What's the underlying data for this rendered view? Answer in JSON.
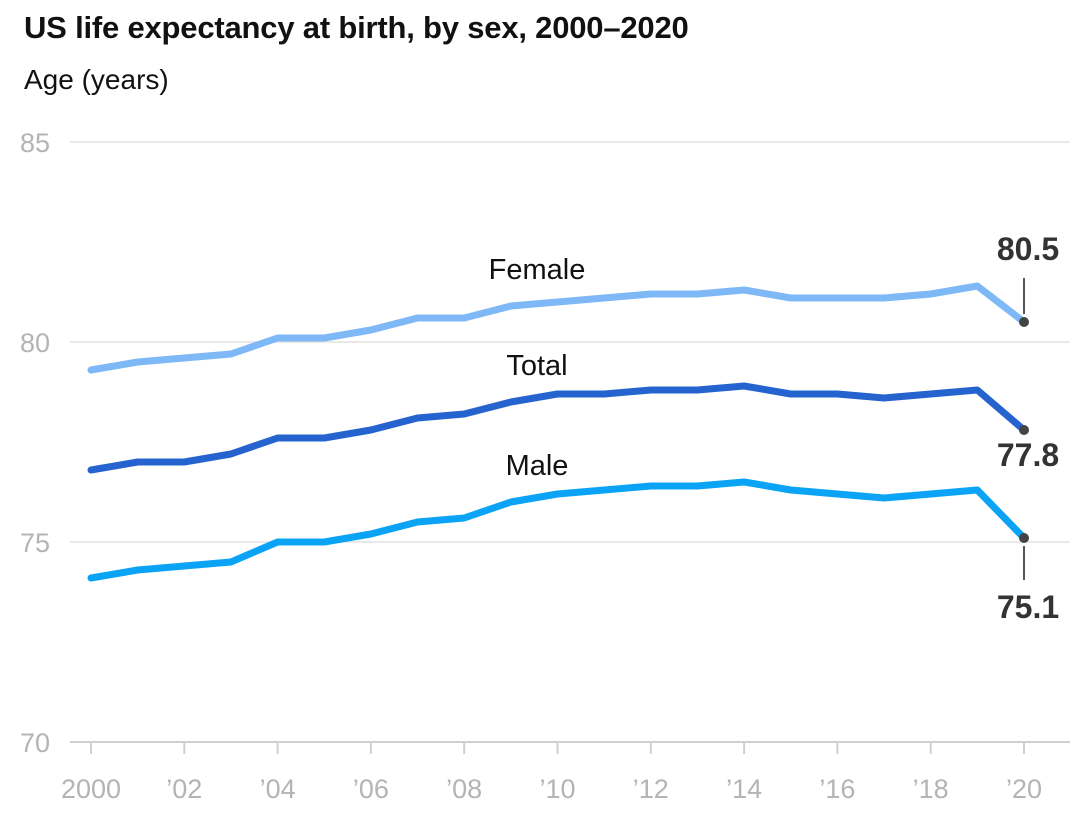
{
  "chart_data": {
    "type": "line",
    "title": "US life expectancy at birth, by sex, 2000–2020",
    "ylabel": "Age (years)",
    "xlabel": "",
    "ylim": [
      70,
      85
    ],
    "xlim": [
      2000,
      2020
    ],
    "y_ticks": [
      {
        "value": 85,
        "label": "85"
      },
      {
        "value": 80,
        "label": "80"
      },
      {
        "value": 75,
        "label": "75"
      },
      {
        "value": 70,
        "label": "70"
      }
    ],
    "x_ticks": [
      {
        "value": 2000,
        "label": "2000"
      },
      {
        "value": 2002,
        "label": "’02"
      },
      {
        "value": 2004,
        "label": "’04"
      },
      {
        "value": 2006,
        "label": "’06"
      },
      {
        "value": 2008,
        "label": "’08"
      },
      {
        "value": 2010,
        "label": "’10"
      },
      {
        "value": 2012,
        "label": "’12"
      },
      {
        "value": 2014,
        "label": "’14"
      },
      {
        "value": 2016,
        "label": "’16"
      },
      {
        "value": 2018,
        "label": "’18"
      },
      {
        "value": 2020,
        "label": "’20"
      }
    ],
    "x": [
      2000,
      2001,
      2002,
      2003,
      2004,
      2005,
      2006,
      2007,
      2008,
      2009,
      2010,
      2011,
      2012,
      2013,
      2014,
      2015,
      2016,
      2017,
      2018,
      2019,
      2020
    ],
    "series": [
      {
        "name": "Female",
        "color": "#7fb8f7",
        "values": [
          79.3,
          79.5,
          79.6,
          79.7,
          80.1,
          80.1,
          80.3,
          80.6,
          80.6,
          80.9,
          81.0,
          81.1,
          81.2,
          81.2,
          81.3,
          81.1,
          81.1,
          81.1,
          81.2,
          81.4,
          80.5
        ],
        "end_label": "80.5"
      },
      {
        "name": "Total",
        "color": "#2563cf",
        "values": [
          76.8,
          77.0,
          77.0,
          77.2,
          77.6,
          77.6,
          77.8,
          78.1,
          78.2,
          78.5,
          78.7,
          78.7,
          78.8,
          78.8,
          78.9,
          78.7,
          78.7,
          78.6,
          78.7,
          78.8,
          77.8
        ],
        "end_label": "77.8"
      },
      {
        "name": "Male",
        "color": "#0aa3f5",
        "values": [
          74.1,
          74.3,
          74.4,
          74.5,
          75.0,
          75.0,
          75.2,
          75.5,
          75.6,
          76.0,
          76.2,
          76.3,
          76.4,
          76.4,
          76.5,
          76.3,
          76.2,
          76.1,
          76.2,
          76.3,
          75.1
        ],
        "end_label": "75.1"
      }
    ],
    "grid": true,
    "legend": "inline labels"
  }
}
